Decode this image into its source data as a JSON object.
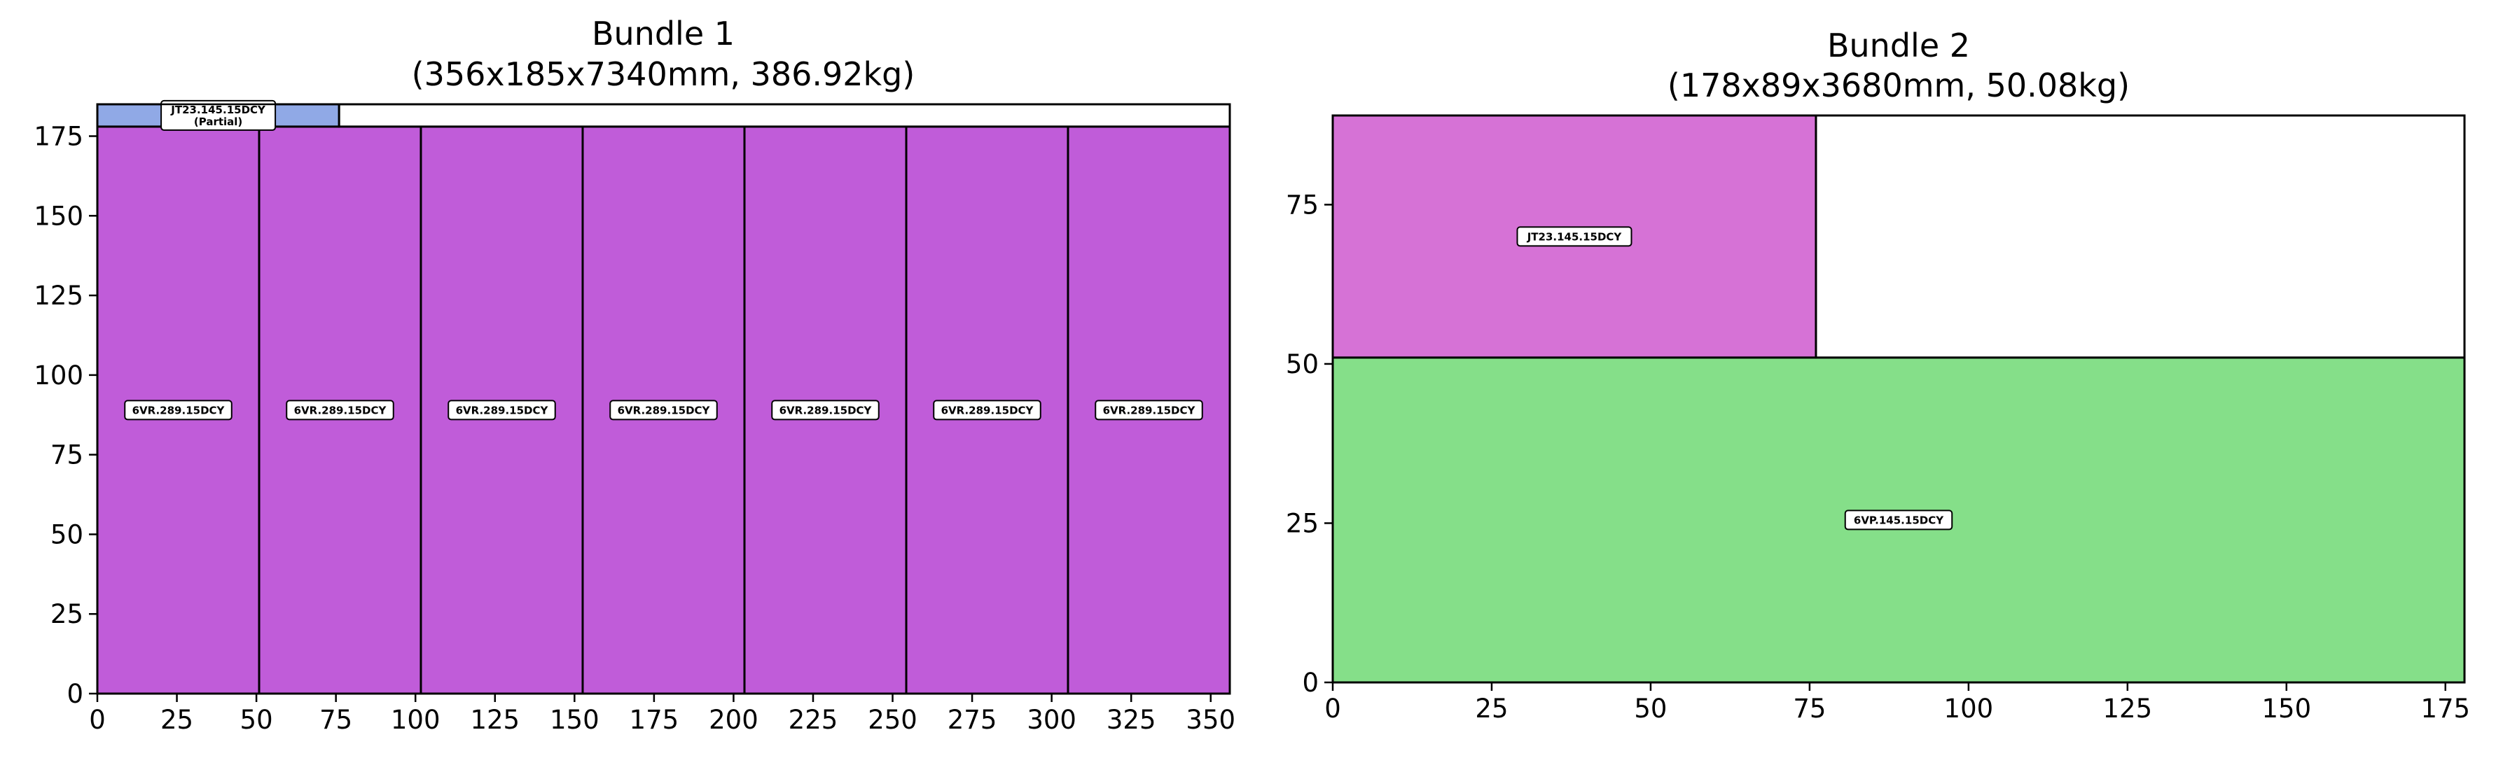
{
  "chart_data": [
    {
      "type": "bar",
      "title": "Bundle 1",
      "subtitle": "(356x185x7340mm, 386.92kg)",
      "xlim": [
        0,
        356
      ],
      "ylim": [
        0,
        185
      ],
      "xticks": [
        0,
        25,
        50,
        75,
        100,
        125,
        150,
        175,
        200,
        225,
        250,
        275,
        300,
        325,
        350
      ],
      "yticks": [
        0,
        25,
        50,
        75,
        100,
        125,
        150,
        175
      ],
      "grid": false,
      "pieces": [
        {
          "x0": 0,
          "x1": 50.86,
          "y0": 0,
          "y1": 178,
          "label": "6VR.289.15DCY",
          "sublabel": "",
          "color": "#c05cd9"
        },
        {
          "x0": 50.86,
          "x1": 101.71,
          "y0": 0,
          "y1": 178,
          "label": "6VR.289.15DCY",
          "sublabel": "",
          "color": "#c05cd9"
        },
        {
          "x0": 101.71,
          "x1": 152.57,
          "y0": 0,
          "y1": 178,
          "label": "6VR.289.15DCY",
          "sublabel": "",
          "color": "#c05cd9"
        },
        {
          "x0": 152.57,
          "x1": 203.43,
          "y0": 0,
          "y1": 178,
          "label": "6VR.289.15DCY",
          "sublabel": "",
          "color": "#c05cd9"
        },
        {
          "x0": 203.43,
          "x1": 254.29,
          "y0": 0,
          "y1": 178,
          "label": "6VR.289.15DCY",
          "sublabel": "",
          "color": "#c05cd9"
        },
        {
          "x0": 254.29,
          "x1": 305.14,
          "y0": 0,
          "y1": 178,
          "label": "6VR.289.15DCY",
          "sublabel": "",
          "color": "#c05cd9"
        },
        {
          "x0": 305.14,
          "x1": 356,
          "y0": 0,
          "y1": 178,
          "label": "6VR.289.15DCY",
          "sublabel": "",
          "color": "#c05cd9"
        },
        {
          "x0": 0,
          "x1": 76,
          "y0": 178,
          "y1": 185,
          "label": "JT23.145.15DCY",
          "sublabel": "(Partial)",
          "color": "#90a9e6"
        },
        {
          "x0": 76,
          "x1": 356,
          "y0": 178,
          "y1": 185,
          "label": "",
          "sublabel": "",
          "color": "#ffffff"
        }
      ]
    },
    {
      "type": "bar",
      "title": "Bundle 2",
      "subtitle": "(178x89x3680mm, 50.08kg)",
      "xlim": [
        0,
        178
      ],
      "ylim": [
        0,
        89
      ],
      "xticks": [
        0,
        25,
        50,
        75,
        100,
        125,
        150,
        175
      ],
      "yticks": [
        0,
        25,
        50,
        75
      ],
      "grid": false,
      "pieces": [
        {
          "x0": 0,
          "x1": 178,
          "y0": 0,
          "y1": 51,
          "label": "6VP.145.15DCY",
          "sublabel": "",
          "color": "#85df89"
        },
        {
          "x0": 0,
          "x1": 76,
          "y0": 51,
          "y1": 89,
          "label": "JT23.145.15DCY",
          "sublabel": "",
          "color": "#d672d6"
        },
        {
          "x0": 76,
          "x1": 178,
          "y0": 51,
          "y1": 89,
          "label": "",
          "sublabel": "",
          "color": "#ffffff"
        }
      ]
    }
  ]
}
